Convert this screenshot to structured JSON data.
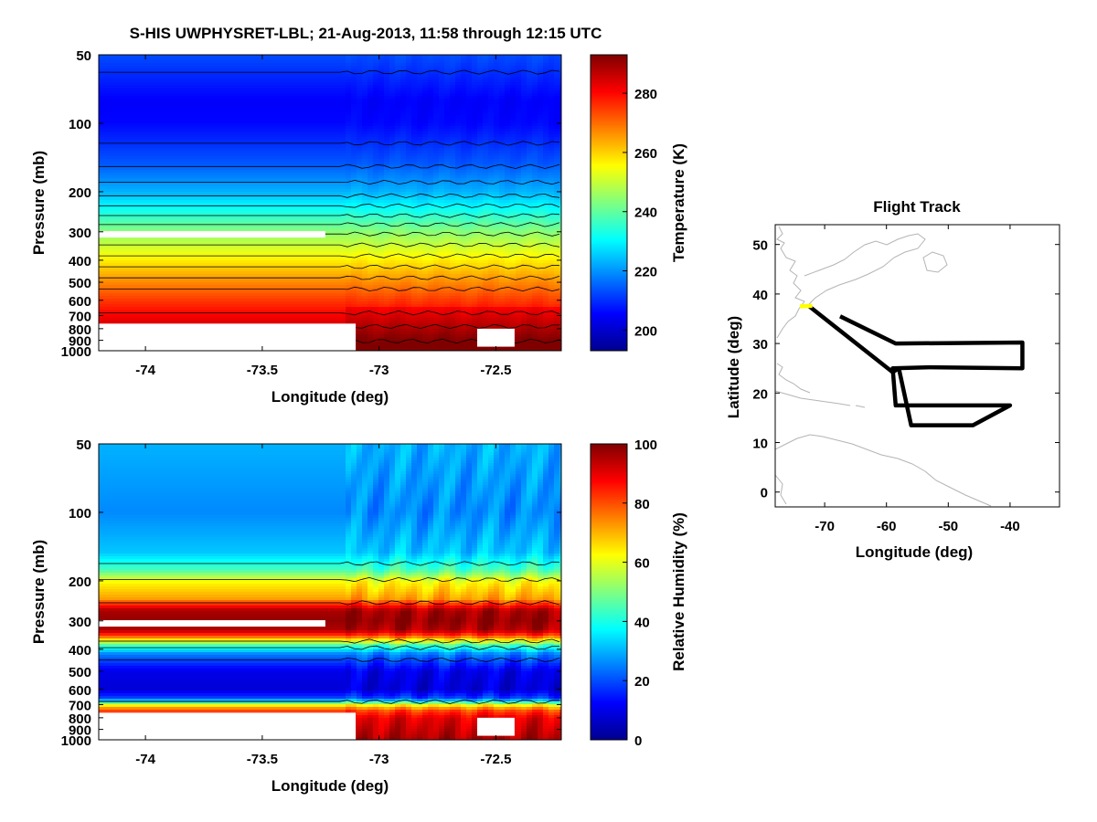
{
  "figure_title": "S-HIS UWPHYSRET-LBL;   21-Aug-2013, 11:58 through 12:15 UTC",
  "chart_data": [
    {
      "id": "temperature",
      "type": "heatmap",
      "title": "",
      "xlabel": "Longitude (deg)",
      "ylabel": "Pressure (mb)",
      "x_ticks": [
        -74,
        -73.5,
        -73,
        -72.5
      ],
      "x_tick_labels": [
        "-74",
        "-73.5",
        "-73",
        "-72.5"
      ],
      "xlim": [
        -74.2,
        -72.22
      ],
      "y_scale": "log",
      "y_ticks": [
        50,
        100,
        200,
        300,
        400,
        500,
        600,
        700,
        800,
        900,
        1000
      ],
      "y_tick_labels": [
        "50",
        "100",
        "200",
        "300",
        "400",
        "500",
        "600",
        "700",
        "800",
        "900",
        "1000"
      ],
      "ylim": [
        50,
        1000
      ],
      "colorbar": {
        "label": "Temperature (K)",
        "range": [
          193,
          293
        ],
        "ticks": [
          200,
          220,
          240,
          260,
          280
        ],
        "tick_labels": [
          "200",
          "220",
          "240",
          "260",
          "280"
        ]
      },
      "profile": {
        "pressure": [
          50,
          80,
          100,
          150,
          200,
          250,
          300,
          400,
          500,
          600,
          700,
          850,
          1000
        ],
        "value": [
          213,
          205,
          206,
          214,
          223,
          234,
          244,
          257,
          267,
          275,
          281,
          288,
          293
        ]
      }
    },
    {
      "id": "humidity",
      "type": "heatmap",
      "title": "",
      "xlabel": "Longitude (deg)",
      "ylabel": "Pressure (mb)",
      "x_ticks": [
        -74,
        -73.5,
        -73,
        -72.5
      ],
      "x_tick_labels": [
        "-74",
        "-73.5",
        "-73",
        "-72.5"
      ],
      "xlim": [
        -74.2,
        -72.22
      ],
      "y_scale": "log",
      "y_ticks": [
        50,
        100,
        200,
        300,
        400,
        500,
        600,
        700,
        800,
        900,
        1000
      ],
      "y_tick_labels": [
        "50",
        "100",
        "200",
        "300",
        "400",
        "500",
        "600",
        "700",
        "800",
        "900",
        "1000"
      ],
      "ylim": [
        50,
        1000
      ],
      "colorbar": {
        "label": "Relative Humidity (%)",
        "range": [
          0,
          100
        ],
        "ticks": [
          0,
          20,
          40,
          60,
          80,
          100
        ],
        "tick_labels": [
          "0",
          "20",
          "40",
          "60",
          "80",
          "100"
        ]
      },
      "profile": {
        "pressure": [
          50,
          100,
          150,
          180,
          200,
          240,
          270,
          300,
          330,
          350,
          380,
          420,
          500,
          600,
          660,
          700,
          740,
          800,
          1000
        ],
        "value": [
          30,
          26,
          32,
          45,
          62,
          72,
          96,
          98,
          95,
          80,
          48,
          25,
          10,
          8,
          20,
          60,
          80,
          90,
          96
        ]
      }
    },
    {
      "id": "flight-track",
      "type": "line",
      "title": "Flight Track",
      "xlabel": "Longitude (deg)",
      "ylabel": "Latitude (deg)",
      "xlim": [
        -78,
        -32
      ],
      "ylim": [
        -3,
        54
      ],
      "x_ticks": [
        -70,
        -60,
        -50,
        -40
      ],
      "x_tick_labels": [
        "-70",
        "-60",
        "-50",
        "-40"
      ],
      "y_ticks": [
        0,
        10,
        20,
        30,
        40,
        50
      ],
      "y_tick_labels": [
        "0",
        "10",
        "20",
        "30",
        "40",
        "50"
      ],
      "track_color": "#000000",
      "highlight_color": "#ffff00",
      "track": [
        [
          -67.5,
          35.5
        ],
        [
          -58.5,
          30
        ],
        [
          -38,
          30.2
        ],
        [
          -38,
          25
        ],
        [
          -53,
          25.2
        ],
        [
          -59,
          25
        ],
        [
          -58.5,
          17.5
        ],
        [
          -40,
          17.5
        ],
        [
          -46,
          13.5
        ],
        [
          -56,
          13.5
        ],
        [
          -58,
          25
        ],
        [
          -59,
          24.2
        ],
        [
          -72.5,
          37.5
        ]
      ],
      "highlight_segment": [
        [
          -74,
          37.5
        ],
        [
          -72,
          37.6
        ]
      ]
    }
  ],
  "colors": {
    "jet": [
      "#00008f",
      "#0000ff",
      "#0080ff",
      "#00ffff",
      "#80ff80",
      "#ffff00",
      "#ff8000",
      "#ff0000",
      "#800000"
    ],
    "contour": "#000000",
    "coast": "#b4b4b4",
    "missing": "#ffffff"
  }
}
